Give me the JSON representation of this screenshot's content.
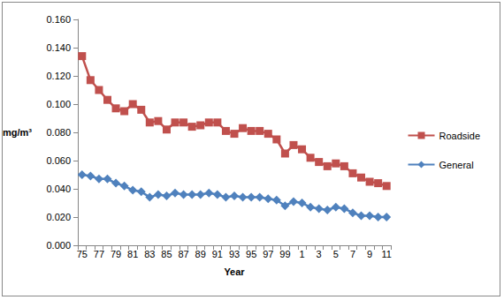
{
  "chart_data": {
    "type": "line",
    "x_label": "Year",
    "y_label": "mg/m³",
    "categories": [
      "75",
      null,
      "77",
      null,
      "79",
      null,
      "81",
      null,
      "83",
      null,
      "85",
      null,
      "87",
      null,
      "89",
      null,
      "91",
      null,
      "93",
      null,
      "95",
      null,
      "97",
      null,
      "99",
      null,
      "1",
      null,
      "3",
      null,
      "5",
      null,
      "7",
      null,
      "9",
      null,
      "11"
    ],
    "series": [
      {
        "name": "Roadside",
        "color": "#c0504d",
        "marker": "square",
        "values": [
          0.134,
          0.117,
          0.11,
          0.103,
          0.097,
          0.095,
          0.1,
          0.096,
          0.087,
          0.088,
          0.082,
          0.087,
          0.087,
          0.084,
          0.085,
          0.087,
          0.087,
          0.081,
          0.079,
          0.083,
          0.081,
          0.081,
          0.079,
          0.075,
          0.065,
          0.071,
          0.068,
          0.062,
          0.059,
          0.056,
          0.058,
          0.056,
          0.051,
          0.048,
          0.045,
          0.044,
          0.042
        ]
      },
      {
        "name": "General",
        "color": "#4f81bd",
        "marker": "diamond",
        "values": [
          0.05,
          0.049,
          0.047,
          0.047,
          0.044,
          0.042,
          0.039,
          0.038,
          0.034,
          0.036,
          0.035,
          0.037,
          0.036,
          0.036,
          0.036,
          0.037,
          0.036,
          0.034,
          0.035,
          0.034,
          0.034,
          0.034,
          0.033,
          0.032,
          0.028,
          0.031,
          0.03,
          0.027,
          0.026,
          0.025,
          0.027,
          0.026,
          0.023,
          0.021,
          0.021,
          0.02,
          0.02
        ]
      }
    ],
    "ylim": [
      0,
      0.16
    ],
    "yticks": [
      {
        "value": 0,
        "label": "0.000"
      },
      {
        "value": 0.02,
        "label": "0.020"
      },
      {
        "value": 0.04,
        "label": "0.040"
      },
      {
        "value": 0.06,
        "label": "0.060"
      },
      {
        "value": 0.08,
        "label": "0.080"
      },
      {
        "value": 0.1,
        "label": "0.100"
      },
      {
        "value": 0.12,
        "label": "0.120"
      },
      {
        "value": 0.14,
        "label": "0.140"
      },
      {
        "value": 0.16,
        "label": "0.160"
      }
    ],
    "grid": false,
    "legend": "right"
  }
}
